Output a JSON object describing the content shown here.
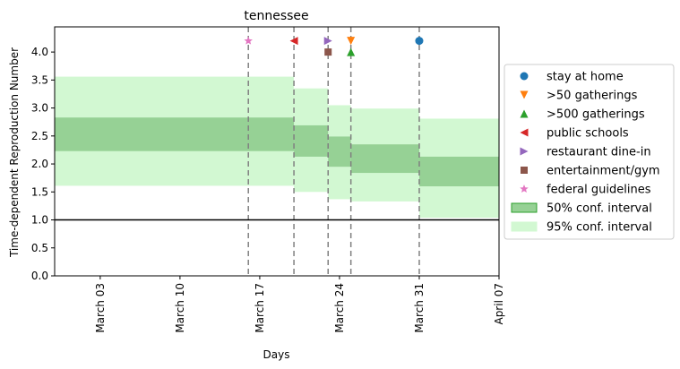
{
  "chart_data": {
    "type": "step-interval",
    "title": "tennessee",
    "xlabel": "Days",
    "ylabel": "Time-dependent Reproduction Number",
    "x_range": [
      "2020-02-28",
      "2020-04-07"
    ],
    "ylim": [
      0,
      4.45
    ],
    "y_ticks": [
      0.0,
      0.5,
      1.0,
      1.5,
      2.0,
      2.5,
      3.0,
      3.5,
      4.0
    ],
    "y_tick_labels": [
      "0.0",
      "0.5",
      "1.0",
      "1.5",
      "2.0",
      "2.5",
      "3.0",
      "3.5",
      "4.0"
    ],
    "x_ticks": [
      {
        "date": "2020-03-03",
        "label": "March 03"
      },
      {
        "date": "2020-03-10",
        "label": "March 10"
      },
      {
        "date": "2020-03-17",
        "label": "March 17"
      },
      {
        "date": "2020-03-24",
        "label": "March 24"
      },
      {
        "date": "2020-03-31",
        "label": "March 31"
      },
      {
        "date": "2020-04-07",
        "label": "April 07"
      }
    ],
    "reference_line": 1.0,
    "segments": [
      {
        "start": "2020-02-28",
        "end": "2020-03-20",
        "ci50": [
          2.23,
          2.83
        ],
        "ci95": [
          1.61,
          3.56
        ]
      },
      {
        "start": "2020-03-20",
        "end": "2020-03-23",
        "ci50": [
          2.13,
          2.69
        ],
        "ci95": [
          1.5,
          3.35
        ]
      },
      {
        "start": "2020-03-23",
        "end": "2020-03-25",
        "ci50": [
          1.95,
          2.49
        ],
        "ci95": [
          1.37,
          3.05
        ]
      },
      {
        "start": "2020-03-25",
        "end": "2020-03-31",
        "ci50": [
          1.84,
          2.35
        ],
        "ci95": [
          1.33,
          2.99
        ]
      },
      {
        "start": "2020-03-31",
        "end": "2020-04-07",
        "ci50": [
          1.6,
          2.13
        ],
        "ci95": [
          1.04,
          2.81
        ]
      }
    ],
    "intervention_lines": [
      "2020-03-16",
      "2020-03-20",
      "2020-03-23",
      "2020-03-25",
      "2020-03-31"
    ],
    "interventions": [
      {
        "name": "stay at home",
        "date": "2020-03-31",
        "y": 4.2,
        "marker": "circle",
        "color": "#1f77b4"
      },
      {
        "name": ">50 gatherings",
        "date": "2020-03-25",
        "y": 4.2,
        "marker": "triangle-down",
        "color": "#ff7f0e"
      },
      {
        "name": ">500 gatherings",
        "date": "2020-03-25",
        "y": 4.0,
        "marker": "triangle-up",
        "color": "#2ca02c"
      },
      {
        "name": "public schools",
        "date": "2020-03-20",
        "y": 4.2,
        "marker": "triangle-left",
        "color": "#d62728"
      },
      {
        "name": "restaurant dine-in",
        "date": "2020-03-23",
        "y": 4.2,
        "marker": "triangle-right",
        "color": "#9467bd"
      },
      {
        "name": "entertainment/gym",
        "date": "2020-03-23",
        "y": 4.0,
        "marker": "square",
        "color": "#8c564b"
      },
      {
        "name": "federal guidelines",
        "date": "2020-03-16",
        "y": 4.2,
        "marker": "star",
        "color": "#e377c2"
      }
    ],
    "legend": {
      "position": "right",
      "interval_entries": [
        {
          "name": "50% conf. interval",
          "color": "#96d195",
          "edge": "#2ca02c"
        },
        {
          "name": "95% conf. interval",
          "color": "#d2f8d2",
          "edge": "#d2f8d2"
        }
      ]
    },
    "colors": {
      "ci50": "#96d195",
      "ci95": "#d2f8d2",
      "dashed_line": "#808080",
      "reference_line": "#000000"
    }
  }
}
